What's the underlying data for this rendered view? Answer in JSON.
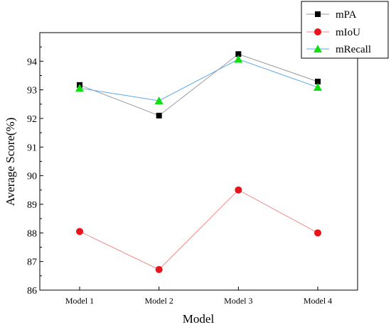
{
  "chart_data": {
    "type": "line",
    "title": "",
    "xlabel": "Model",
    "ylabel": "Average Score(%)",
    "categories": [
      "Model 1",
      "Model 2",
      "Model 3",
      "Model 4"
    ],
    "ylim": [
      86,
      95
    ],
    "yticks": [
      86,
      87,
      88,
      89,
      90,
      91,
      92,
      93,
      94
    ],
    "grid": false,
    "legend_position": "top-right",
    "series": [
      {
        "name": "mPA",
        "values": [
          93.17,
          92.1,
          94.25,
          93.29
        ],
        "marker": "square",
        "marker_color": "#000000",
        "line_color": "#9a9a9a"
      },
      {
        "name": "mIoU",
        "values": [
          88.05,
          86.72,
          89.5,
          88.0
        ],
        "marker": "circle",
        "marker_color": "#e8141c",
        "line_color": "#f08a8a"
      },
      {
        "name": "mRecall",
        "values": [
          93.06,
          92.62,
          94.07,
          93.09
        ],
        "marker": "triangle",
        "marker_color": "#10e010",
        "line_color": "#5aa8e8"
      }
    ]
  }
}
